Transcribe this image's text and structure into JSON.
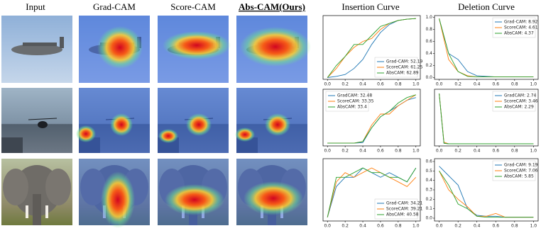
{
  "headers": [
    "Input",
    "Grad-CAM",
    "Score-CAM",
    "Abs-CAM(Ours)",
    "Insertion Curve",
    "Deletion Curve"
  ],
  "charts": [
    {
      "type": "line",
      "legend": "lower right",
      "x": [
        0,
        0.1,
        0.2,
        0.3,
        0.4,
        0.5,
        0.6,
        0.7,
        0.8,
        0.9,
        1.0
      ],
      "xlim": [
        -0.05,
        1.05
      ],
      "ylim": [
        -0.03,
        1.03
      ],
      "xticks": [
        {
          "value": 0,
          "label": "0.0"
        },
        {
          "value": 0.2,
          "label": "0.2"
        },
        {
          "value": 0.4,
          "label": "0.4"
        },
        {
          "value": 0.6,
          "label": "0.6"
        },
        {
          "value": 0.8,
          "label": "0.8"
        },
        {
          "value": 1,
          "label": "1.0"
        }
      ],
      "series": [
        {
          "name": "Grad-CAM: 52.19",
          "color": "#1f77b4",
          "values": [
            0,
            0.02,
            0.05,
            0.15,
            0.3,
            0.55,
            0.75,
            0.88,
            0.95,
            0.97,
            0.98
          ]
        },
        {
          "name": "ScoreCAM: 61.25",
          "color": "#ff7f0e",
          "values": [
            0,
            0.15,
            0.35,
            0.5,
            0.6,
            0.65,
            0.8,
            0.9,
            0.95,
            0.97,
            0.98
          ]
        },
        {
          "name": "AbsCAM: 62.89",
          "color": "#2ca02c",
          "values": [
            0,
            0.2,
            0.35,
            0.55,
            0.55,
            0.7,
            0.85,
            0.9,
            0.95,
            0.97,
            0.98
          ]
        }
      ]
    },
    {
      "type": "line",
      "legend": "upper right",
      "x": [
        0,
        0.1,
        0.2,
        0.3,
        0.4,
        0.5,
        0.6,
        0.7,
        0.8,
        0.9,
        1.0
      ],
      "xlim": [
        -0.05,
        1.05
      ],
      "ylim": [
        -0.03,
        1.03
      ],
      "xticks": [
        {
          "value": 0,
          "label": "0.0"
        },
        {
          "value": 0.2,
          "label": "0.2"
        },
        {
          "value": 0.4,
          "label": "0.4"
        },
        {
          "value": 0.6,
          "label": "0.6"
        },
        {
          "value": 0.8,
          "label": "0.8"
        },
        {
          "value": 1,
          "label": "1.0"
        }
      ],
      "yticks": [
        {
          "value": 0,
          "label": "0.0"
        },
        {
          "value": 0.2,
          "label": "0.2"
        },
        {
          "value": 0.4,
          "label": "0.4"
        },
        {
          "value": 0.6,
          "label": "0.6"
        },
        {
          "value": 0.8,
          "label": "0.8"
        },
        {
          "value": 1,
          "label": "1.0"
        }
      ],
      "series": [
        {
          "name": "Grad-CAM: 8.92",
          "color": "#1f77b4",
          "values": [
            0.98,
            0.4,
            0.3,
            0.1,
            0.03,
            0.02,
            0.01,
            0.01,
            0.01,
            0.01,
            0.01
          ]
        },
        {
          "name": "ScoreCAM: 4.61",
          "color": "#ff7f0e",
          "values": [
            0.98,
            0.3,
            0.1,
            0.03,
            0.01,
            0.01,
            0.01,
            0.01,
            0.01,
            0.01,
            0.01
          ]
        },
        {
          "name": "AbsCAM: 4.37",
          "color": "#2ca02c",
          "values": [
            0.98,
            0.4,
            0.1,
            0.02,
            0.01,
            0.01,
            0.01,
            0.01,
            0.01,
            0.01,
            0.01
          ]
        }
      ]
    },
    {
      "type": "line",
      "legend": "upper left",
      "x": [
        0,
        0.1,
        0.2,
        0.3,
        0.4,
        0.5,
        0.6,
        0.7,
        0.8,
        0.9,
        1.0
      ],
      "xlim": [
        -0.05,
        1.05
      ],
      "ylim": [
        -0.03,
        1.0
      ],
      "xticks": [
        {
          "value": 0,
          "label": "0.0"
        },
        {
          "value": 0.2,
          "label": "0.2"
        },
        {
          "value": 0.4,
          "label": "0.4"
        },
        {
          "value": 0.6,
          "label": "0.6"
        },
        {
          "value": 0.8,
          "label": "0.8"
        },
        {
          "value": 1,
          "label": "1.0"
        }
      ],
      "series": [
        {
          "name": "GradCAM: 32.48",
          "color": "#1f77b4",
          "values": [
            0.02,
            0.02,
            0.02,
            0.02,
            0.03,
            0.3,
            0.5,
            0.6,
            0.7,
            0.8,
            0.85
          ]
        },
        {
          "name": "ScoreCAM: 33.35",
          "color": "#ff7f0e",
          "values": [
            0.02,
            0.02,
            0.02,
            0.02,
            0.05,
            0.35,
            0.55,
            0.55,
            0.7,
            0.8,
            0.9
          ]
        },
        {
          "name": "AbsCAM: 33.4",
          "color": "#2ca02c",
          "values": [
            0.02,
            0.02,
            0.02,
            0.02,
            0.05,
            0.3,
            0.5,
            0.6,
            0.75,
            0.85,
            0.9
          ]
        }
      ]
    },
    {
      "type": "line",
      "legend": "upper right",
      "x": [
        0,
        0.05,
        0.1,
        0.2,
        0.3,
        0.4,
        0.5,
        0.6,
        0.7,
        0.8,
        0.9,
        1.0
      ],
      "xlim": [
        -0.05,
        1.05
      ],
      "ylim": [
        -0.03,
        1.03
      ],
      "xticks": [
        {
          "value": 0,
          "label": "0.0"
        },
        {
          "value": 0.2,
          "label": "0.2"
        },
        {
          "value": 0.4,
          "label": "0.4"
        },
        {
          "value": 0.6,
          "label": "0.6"
        },
        {
          "value": 0.8,
          "label": "0.8"
        },
        {
          "value": 1,
          "label": "1.0"
        }
      ],
      "series": [
        {
          "name": "GradCAM: 2.74",
          "color": "#1f77b4",
          "values": [
            0.95,
            0.02,
            0.01,
            0.01,
            0.01,
            0.01,
            0.01,
            0.01,
            0.01,
            0.01,
            0.01,
            0.01
          ]
        },
        {
          "name": "ScoreCAM: 3.46",
          "color": "#ff7f0e",
          "values": [
            0.95,
            0.04,
            0.01,
            0.01,
            0.01,
            0.01,
            0.01,
            0.01,
            0.01,
            0.01,
            0.01,
            0.01
          ]
        },
        {
          "name": "AbsCAM: 2.29",
          "color": "#2ca02c",
          "values": [
            0.95,
            0.02,
            0.01,
            0.01,
            0.01,
            0.01,
            0.01,
            0.01,
            0.01,
            0.01,
            0.01,
            0.01
          ]
        }
      ]
    },
    {
      "type": "line",
      "legend": "lower right",
      "x": [
        0,
        0.1,
        0.2,
        0.3,
        0.4,
        0.5,
        0.6,
        0.7,
        0.8,
        0.9,
        1.0
      ],
      "xlim": [
        -0.05,
        1.05
      ],
      "ylim": [
        -0.02,
        0.65
      ],
      "xticks": [
        {
          "value": 0,
          "label": "0.0"
        },
        {
          "value": 0.2,
          "label": "0.2"
        },
        {
          "value": 0.4,
          "label": "0.4"
        },
        {
          "value": 0.6,
          "label": "0.6"
        },
        {
          "value": 0.8,
          "label": "0.8"
        },
        {
          "value": 1,
          "label": "1.0"
        }
      ],
      "series": [
        {
          "name": "Grad-CAM: 34.21",
          "color": "#1f77b4",
          "values": [
            0.02,
            0.35,
            0.45,
            0.45,
            0.55,
            0.5,
            0.45,
            0.5,
            0.45,
            0.4,
            0.55
          ]
        },
        {
          "name": "ScoreCAM: 39.21",
          "color": "#ff7f0e",
          "values": [
            0.02,
            0.4,
            0.5,
            0.45,
            0.5,
            0.55,
            0.5,
            0.45,
            0.4,
            0.35,
            0.45
          ]
        },
        {
          "name": "AbsCAM: 40.58",
          "color": "#2ca02c",
          "values": [
            0.02,
            0.45,
            0.45,
            0.5,
            0.55,
            0.5,
            0.5,
            0.45,
            0.45,
            0.4,
            0.55
          ]
        }
      ]
    },
    {
      "type": "line",
      "legend": "upper right",
      "x": [
        0,
        0.1,
        0.2,
        0.3,
        0.4,
        0.5,
        0.6,
        0.7,
        0.8,
        0.9,
        1.0
      ],
      "xlim": [
        -0.05,
        1.05
      ],
      "ylim": [
        -0.03,
        0.63
      ],
      "xticks": [
        {
          "value": 0,
          "label": "0.0"
        },
        {
          "value": 0.2,
          "label": "0.2"
        },
        {
          "value": 0.4,
          "label": "0.4"
        },
        {
          "value": 0.6,
          "label": "0.6"
        },
        {
          "value": 0.8,
          "label": "0.8"
        },
        {
          "value": 1,
          "label": "1.0"
        }
      ],
      "yticks": [
        {
          "value": 0,
          "label": "0.0"
        },
        {
          "value": 0.1,
          "label": "0.1"
        },
        {
          "value": 0.2,
          "label": "0.2"
        },
        {
          "value": 0.3,
          "label": "0.3"
        },
        {
          "value": 0.4,
          "label": "0.4"
        },
        {
          "value": 0.5,
          "label": "0.5"
        },
        {
          "value": 0.6,
          "label": "0.6"
        }
      ],
      "series": [
        {
          "name": "Grad-CAM: 9.19",
          "color": "#1f77b4",
          "values": [
            0.55,
            0.45,
            0.35,
            0.1,
            0.03,
            0.02,
            0.02,
            0.01,
            0.01,
            0.01,
            0.01
          ]
        },
        {
          "name": "ScoreCAM: 7.06",
          "color": "#ff7f0e",
          "values": [
            0.5,
            0.3,
            0.2,
            0.12,
            0.02,
            0.02,
            0.05,
            0.01,
            0.01,
            0.01,
            0.01
          ]
        },
        {
          "name": "AbsCAM: 5.85",
          "color": "#2ca02c",
          "values": [
            0.5,
            0.35,
            0.15,
            0.1,
            0.02,
            0.01,
            0.01,
            0.01,
            0.01,
            0.01,
            0.01
          ]
        }
      ]
    }
  ]
}
